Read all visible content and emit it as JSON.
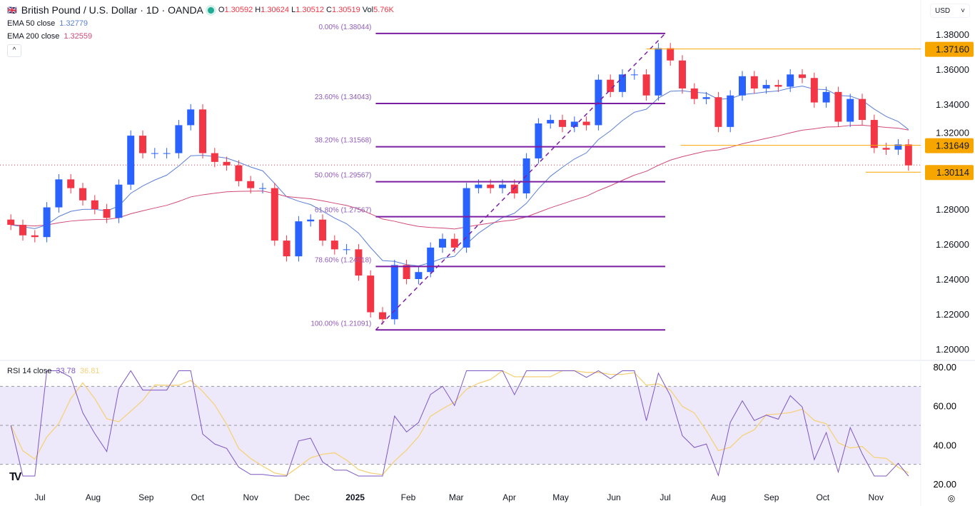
{
  "header": {
    "symbol": "British Pound / U.S. Dollar · 1D · OANDA",
    "o_label": "O",
    "o": "1.30592",
    "h_label": "H",
    "h": "1.30624",
    "l_label": "L",
    "l": "1.30512",
    "c_label": "C",
    "c": "1.30519",
    "vol_label": "Vol",
    "vol": "5.76K",
    "status_color": "#22ab94"
  },
  "indicators": {
    "ema50_label": "EMA 50 close",
    "ema50_value": "1.32779",
    "ema50_color": "#5b7fd6",
    "ema200_label": "EMA 200 close",
    "ema200_value": "1.32559",
    "ema200_color": "#d04a78",
    "rsi_label": "RSI 14 close",
    "rsi_value": "33.78",
    "rsi_ma_value": "36.81",
    "rsi_color": "#7e57c2",
    "rsi_ma_color": "#f5d27a"
  },
  "currency": "USD",
  "collapse_icon": "chevron-up-icon",
  "chart_data": {
    "type": "candlestick",
    "colors": {
      "up": "#2962ff",
      "down": "#f23645",
      "fib": "#7b1fa2",
      "level": "#f7a600"
    },
    "x": [
      "2024-06-14",
      "2024-06-21",
      "2024-06-28",
      "2024-07-05",
      "2024-07-12",
      "2024-07-19",
      "2024-07-26",
      "2024-08-02",
      "2024-08-09",
      "2024-08-16",
      "2024-08-23",
      "2024-08-30",
      "2024-09-06",
      "2024-09-13",
      "2024-09-20",
      "2024-09-27",
      "2024-10-04",
      "2024-10-11",
      "2024-10-18",
      "2024-10-25",
      "2024-11-01",
      "2024-11-08",
      "2024-11-15",
      "2024-11-22",
      "2024-11-29",
      "2024-12-06",
      "2024-12-13",
      "2024-12-20",
      "2024-12-27",
      "2025-01-03",
      "2025-01-10",
      "2025-01-17",
      "2025-01-24",
      "2025-01-31",
      "2025-02-07",
      "2025-02-14",
      "2025-02-21",
      "2025-02-28",
      "2025-03-07",
      "2025-03-14",
      "2025-03-21",
      "2025-03-28",
      "2025-04-04",
      "2025-04-11",
      "2025-04-18",
      "2025-04-25",
      "2025-05-02",
      "2025-05-09",
      "2025-05-16",
      "2025-05-23",
      "2025-05-30",
      "2025-06-06",
      "2025-06-13",
      "2025-06-20",
      "2025-06-27",
      "2025-07-04",
      "2025-07-11",
      "2025-07-18",
      "2025-07-25",
      "2025-08-01",
      "2025-08-08",
      "2025-08-15",
      "2025-08-22",
      "2025-08-29",
      "2025-09-05",
      "2025-09-12",
      "2025-09-19",
      "2025-09-26",
      "2025-10-03",
      "2025-10-10",
      "2025-10-17",
      "2025-10-24",
      "2025-10-31",
      "2025-11-07",
      "2025-11-14",
      "2025-11-20"
    ],
    "close": [
      1.271,
      1.265,
      1.264,
      1.281,
      1.297,
      1.292,
      1.285,
      1.28,
      1.275,
      1.294,
      1.322,
      1.312,
      1.312,
      1.312,
      1.328,
      1.337,
      1.312,
      1.307,
      1.305,
      1.296,
      1.292,
      1.292,
      1.262,
      1.253,
      1.273,
      1.274,
      1.262,
      1.257,
      1.257,
      1.242,
      1.221,
      1.217,
      1.248,
      1.24,
      1.244,
      1.258,
      1.263,
      1.258,
      1.292,
      1.294,
      1.292,
      1.294,
      1.289,
      1.309,
      1.329,
      1.331,
      1.327,
      1.33,
      1.328,
      1.354,
      1.347,
      1.357,
      1.357,
      1.345,
      1.372,
      1.365,
      1.349,
      1.343,
      1.344,
      1.327,
      1.345,
      1.356,
      1.349,
      1.351,
      1.35,
      1.357,
      1.355,
      1.341,
      1.347,
      1.33,
      1.343,
      1.331,
      1.315,
      1.314,
      1.317,
      1.305
    ],
    "price_ticks": [
      "1.38000",
      "1.36000",
      "1.34000",
      "1.32000",
      "1.28000",
      "1.26000",
      "1.24000",
      "1.22000",
      "1.20000"
    ],
    "ylim": [
      1.2,
      1.38
    ],
    "x_labels": [
      [
        "2024-07-01",
        "Jul"
      ],
      [
        "2024-08-01",
        "Aug"
      ],
      [
        "2024-09-01",
        "Sep"
      ],
      [
        "2024-10-01",
        "Oct"
      ],
      [
        "2024-11-01",
        "Nov"
      ],
      [
        "2024-12-01",
        "Dec"
      ],
      [
        "2025-01-01",
        "2025"
      ],
      [
        "2025-02-01",
        "Feb"
      ],
      [
        "2025-03-01",
        "Mar"
      ],
      [
        "2025-04-01",
        "Apr"
      ],
      [
        "2025-05-01",
        "May"
      ],
      [
        "2025-06-01",
        "Jun"
      ],
      [
        "2025-07-01",
        "Jul"
      ],
      [
        "2025-08-01",
        "Aug"
      ],
      [
        "2025-09-01",
        "Sep"
      ],
      [
        "2025-10-01",
        "Oct"
      ],
      [
        "2025-11-01",
        "Nov"
      ]
    ],
    "fibonacci": {
      "from": {
        "date": "2025-01-13",
        "price": 1.21091
      },
      "to": {
        "date": "2025-07-01",
        "price": 1.38044
      },
      "levels": [
        {
          "label": "0.00% (1.38044)",
          "price": 1.38044
        },
        {
          "label": "23.60% (1.34043)",
          "price": 1.34043
        },
        {
          "label": "38.20% (1.31568)",
          "price": 1.31568
        },
        {
          "label": "50.00% (1.29567)",
          "price": 1.29567
        },
        {
          "label": "61.80% (1.27567)",
          "price": 1.27567
        },
        {
          "label": "78.60% (1.24718)",
          "price": 1.24718
        },
        {
          "label": "100.00% (1.21091)",
          "price": 1.21091
        }
      ]
    },
    "horizontal_levels": [
      {
        "label": "1.37160",
        "price": 1.3716,
        "from": "2025-06-20"
      },
      {
        "label": "1.31649",
        "price": 1.31649,
        "from": "2025-07-10"
      },
      {
        "label": "1.30114",
        "price": 1.30114,
        "from": "2025-10-26"
      }
    ],
    "last_price": 1.30519,
    "rsi": {
      "ticks": [
        "80.00",
        "60.00",
        "40.00",
        "20.00"
      ],
      "ylim": [
        20,
        80
      ],
      "bands": [
        30,
        50,
        70
      ]
    }
  }
}
